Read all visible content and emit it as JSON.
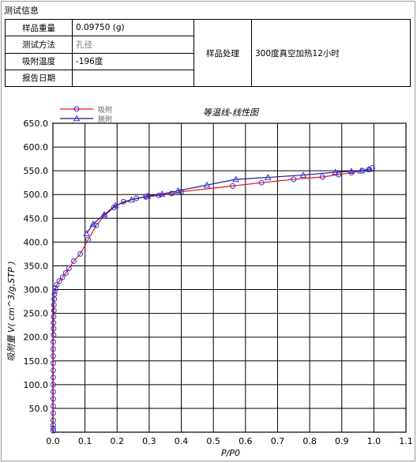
{
  "info": {
    "section_title": "测试信息",
    "rows": [
      {
        "label": "样品重量",
        "value": "0.09750 (g)"
      },
      {
        "label": "测试方法",
        "value": "孔径"
      },
      {
        "label": "吸附温度",
        "value": "-196度"
      },
      {
        "label": "报告日期",
        "value": ""
      }
    ],
    "treatment_label": "样品处理",
    "treatment_value": "300度真空加热12小时"
  },
  "chart_data": {
    "type": "line",
    "title": "等温线-线性图",
    "xlabel": "P/P0",
    "ylabel": "吸附量 V( cm^3/g,STP )",
    "xlim": [
      0.0,
      1.1
    ],
    "ylim": [
      0,
      650
    ],
    "xticks": [
      "0.0",
      "0.1",
      "0.2",
      "0.3",
      "0.4",
      "0.5",
      "0.6",
      "0.7",
      "0.8",
      "0.9",
      "1.0",
      "1.1"
    ],
    "yticks": [
      "50.0",
      "100.0",
      "150.0",
      "200.0",
      "250.0",
      "300.0",
      "350.0",
      "400.0",
      "450.0",
      "500.0",
      "550.0",
      "600.0",
      "650.0"
    ],
    "grid": true,
    "legend_position": "top-left",
    "series": [
      {
        "name": "吸附",
        "line_color": "#e8141b",
        "marker": "circle",
        "marker_color": "#3a2fd0",
        "x": [
          0.001,
          0.001,
          0.001,
          0.001,
          0.001,
          0.001,
          0.001,
          0.001,
          0.001,
          0.001,
          0.001,
          0.001,
          0.001,
          0.001,
          0.001,
          0.002,
          0.002,
          0.002,
          0.002,
          0.003,
          0.003,
          0.004,
          0.005,
          0.006,
          0.008,
          0.012,
          0.02,
          0.03,
          0.04,
          0.05,
          0.065,
          0.085,
          0.11,
          0.135,
          0.16,
          0.19,
          0.22,
          0.26,
          0.29,
          0.33,
          0.37,
          0.4,
          0.56,
          0.65,
          0.75,
          0.84,
          0.89,
          0.93,
          0.965,
          0.985,
          0.995
        ],
        "y": [
          3,
          8,
          15,
          25,
          40,
          55,
          70,
          85,
          100,
          115,
          130,
          145,
          160,
          175,
          190,
          205,
          218,
          230,
          243,
          256,
          268,
          280,
          290,
          297,
          303,
          310,
          318,
          326,
          335,
          345,
          360,
          375,
          405,
          435,
          455,
          473,
          485,
          492,
          495,
          498,
          502,
          506,
          518,
          525,
          532,
          537,
          542,
          546,
          550,
          553,
          556
        ]
      },
      {
        "name": "脱附",
        "line_color": "#1a1a8c",
        "marker": "triangle",
        "marker_color": "#3a2fd0",
        "x": [
          0.985,
          0.96,
          0.93,
          0.88,
          0.78,
          0.67,
          0.57,
          0.48,
          0.39,
          0.34,
          0.295,
          0.245,
          0.195,
          0.16,
          0.125,
          0.105
        ],
        "y": [
          553,
          550,
          549,
          547,
          541,
          536,
          532,
          520,
          508,
          501,
          497,
          489,
          477,
          458,
          438,
          418
        ]
      }
    ]
  }
}
